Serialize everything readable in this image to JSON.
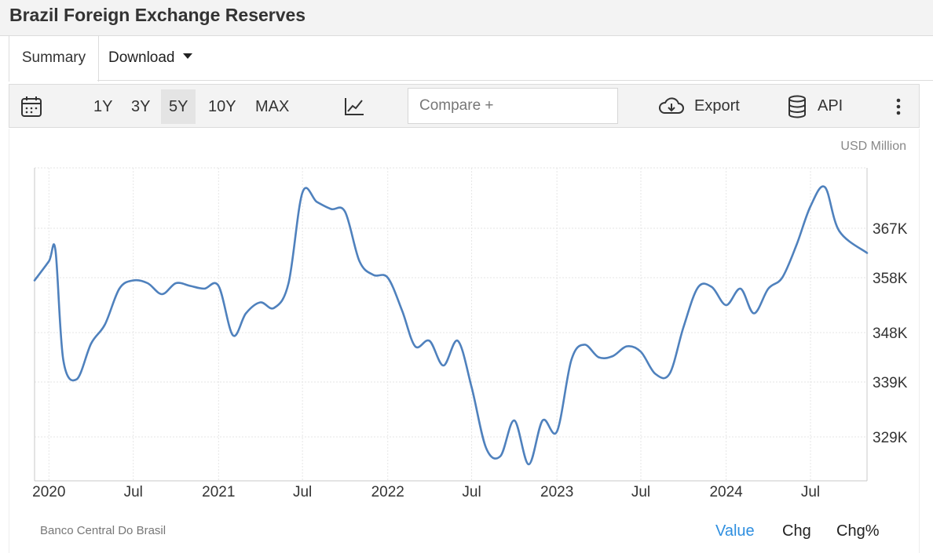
{
  "header": {
    "title": "Brazil Foreign Exchange Reserves"
  },
  "tabs": {
    "summary": "Summary",
    "download": "Download"
  },
  "toolbar": {
    "ranges": [
      "1Y",
      "3Y",
      "5Y",
      "10Y",
      "MAX"
    ],
    "active_range": "5Y",
    "compare_placeholder": "Compare +",
    "export_label": "Export",
    "api_label": "API"
  },
  "icons": [
    "calendar-icon",
    "line-chart-icon",
    "cloud-download-icon",
    "database-icon",
    "more-vert-icon"
  ],
  "footer": {
    "source": "Banco Central Do Brasil",
    "modes": [
      "Value",
      "Chg",
      "Chg%"
    ],
    "active_mode": "Value"
  },
  "colors": {
    "line": "#4f81bd",
    "active_mode": "#2f8fe0",
    "text": "#333333"
  },
  "chart_data": {
    "type": "line",
    "title": "Brazil Foreign Exchange Reserves",
    "unit_label": "USD Million",
    "ylim": [
      321000,
      378000
    ],
    "xlim": [
      "2019-12-01",
      "2024-10-31"
    ],
    "y_ticks": [
      329000,
      339000,
      348000,
      358000,
      367000
    ],
    "y_tick_labels": [
      "329K",
      "339K",
      "348K",
      "358K",
      "367K"
    ],
    "x_ticks": [
      "2020-01-01",
      "2020-07-01",
      "2021-01-01",
      "2021-07-01",
      "2022-01-01",
      "2022-07-01",
      "2023-01-01",
      "2023-07-01",
      "2024-01-01",
      "2024-07-01"
    ],
    "x_tick_labels": [
      "2020",
      "Jul",
      "2021",
      "Jul",
      "2022",
      "Jul",
      "2023",
      "Jul",
      "2024",
      "Jul"
    ],
    "grid": true,
    "series": [
      {
        "x": [
          "2019-12-01",
          "2020-01-01",
          "2020-01-15",
          "2020-02-01",
          "2020-03-01",
          "2020-04-01",
          "2020-05-01",
          "2020-06-01",
          "2020-07-01",
          "2020-08-01",
          "2020-09-01",
          "2020-10-01",
          "2020-11-01",
          "2020-12-01",
          "2021-01-01",
          "2021-02-01",
          "2021-03-01",
          "2021-04-01",
          "2021-05-01",
          "2021-06-01",
          "2021-07-01",
          "2021-08-01",
          "2021-09-01",
          "2021-10-01",
          "2021-11-01",
          "2021-12-01",
          "2022-01-01",
          "2022-02-01",
          "2022-03-01",
          "2022-04-01",
          "2022-05-01",
          "2022-06-01",
          "2022-07-01",
          "2022-08-01",
          "2022-09-01",
          "2022-10-01",
          "2022-11-01",
          "2022-12-01",
          "2023-01-01",
          "2023-02-01",
          "2023-03-01",
          "2023-04-01",
          "2023-05-01",
          "2023-06-01",
          "2023-07-01",
          "2023-08-01",
          "2023-09-01",
          "2023-10-01",
          "2023-11-01",
          "2023-12-01",
          "2024-01-01",
          "2024-02-01",
          "2024-03-01",
          "2024-04-01",
          "2024-05-01",
          "2024-06-01",
          "2024-07-01",
          "2024-08-01",
          "2024-09-01",
          "2024-10-31"
        ],
        "values": [
          357500,
          361000,
          363000,
          343000,
          339500,
          346000,
          349500,
          356000,
          357500,
          357000,
          355000,
          357000,
          356500,
          356000,
          356500,
          347500,
          351500,
          353500,
          352500,
          357000,
          373500,
          371800,
          370500,
          370000,
          361000,
          358500,
          358000,
          352000,
          345500,
          346500,
          342000,
          346500,
          338000,
          327000,
          325500,
          332000,
          324000,
          332000,
          330000,
          343000,
          345800,
          343500,
          343700,
          345500,
          344500,
          340500,
          340500,
          349000,
          356200,
          356300,
          353000,
          356000,
          351500,
          356000,
          358000,
          364000,
          371000,
          374500,
          366500,
          362500
        ]
      }
    ]
  }
}
